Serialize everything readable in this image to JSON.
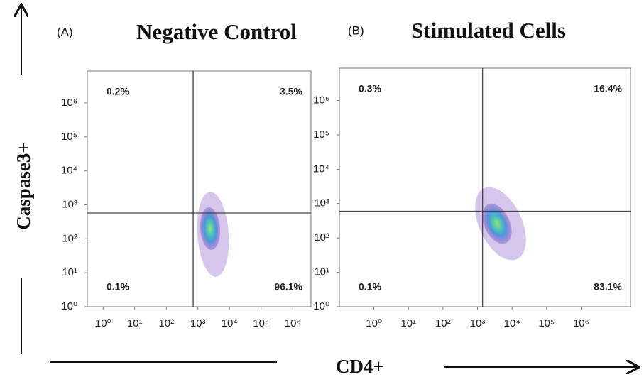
{
  "axis_labels": {
    "x": "CD4+",
    "y": "Caspase3+"
  },
  "chart_data": [
    {
      "type": "quadrant",
      "panel": "(A)",
      "title": "Negative Control",
      "log_scale": true,
      "xlim": [
        0.316,
        3800000
      ],
      "ylim": [
        1,
        8700000
      ],
      "xticks": [
        {
          "value": 1,
          "label": "10⁰"
        },
        {
          "value": 10,
          "label": "10¹"
        },
        {
          "value": 100,
          "label": "10²"
        },
        {
          "value": 1000,
          "label": "10³"
        },
        {
          "value": 10000,
          "label": "10⁴"
        },
        {
          "value": 100000,
          "label": "10⁵"
        },
        {
          "value": 1000000,
          "label": "10⁶"
        }
      ],
      "yticks": [
        {
          "value": 1,
          "label": "10⁰"
        },
        {
          "value": 10,
          "label": "10¹"
        },
        {
          "value": 100,
          "label": "10²"
        },
        {
          "value": 1000,
          "label": "10³"
        },
        {
          "value": 10000,
          "label": "10⁴"
        },
        {
          "value": 100000,
          "label": "10⁵"
        },
        {
          "value": 1000000,
          "label": "10⁶"
        }
      ],
      "gate_x": 710,
      "gate_y": 575,
      "quadrant_values": [
        0.2,
        3.5,
        0.1,
        96.1
      ],
      "value_labels": [
        "0.2%",
        "3.5%",
        "0.1%",
        "96.1%"
      ]
    },
    {
      "type": "quadrant",
      "panel": "(B)",
      "title": "Stimulated Cells",
      "log_scale": true,
      "xlim": [
        0.1,
        27000000
      ],
      "ylim": [
        1,
        8700000
      ],
      "xticks": [
        {
          "value": 1,
          "label": "10⁰"
        },
        {
          "value": 10,
          "label": "10¹"
        },
        {
          "value": 100,
          "label": "10²"
        },
        {
          "value": 1000,
          "label": "10³"
        },
        {
          "value": 10000,
          "label": "10⁴"
        },
        {
          "value": 100000,
          "label": "10⁵"
        },
        {
          "value": 1000000,
          "label": "10⁶"
        }
      ],
      "yticks": [
        {
          "value": 1,
          "label": "10⁰"
        },
        {
          "value": 10,
          "label": "10¹"
        },
        {
          "value": 100,
          "label": "10²"
        },
        {
          "value": 1000,
          "label": "10³"
        },
        {
          "value": 10000,
          "label": "10⁴"
        },
        {
          "value": 100000,
          "label": "10⁵"
        },
        {
          "value": 1000000,
          "label": "10⁶"
        }
      ],
      "gate_x": 1400,
      "gate_y": 600,
      "quadrant_values": [
        0.3,
        16.4,
        0.1,
        83.1
      ],
      "value_labels": [
        "0.3%",
        "16.4%",
        "0.1%",
        "83.1%"
      ]
    }
  ]
}
